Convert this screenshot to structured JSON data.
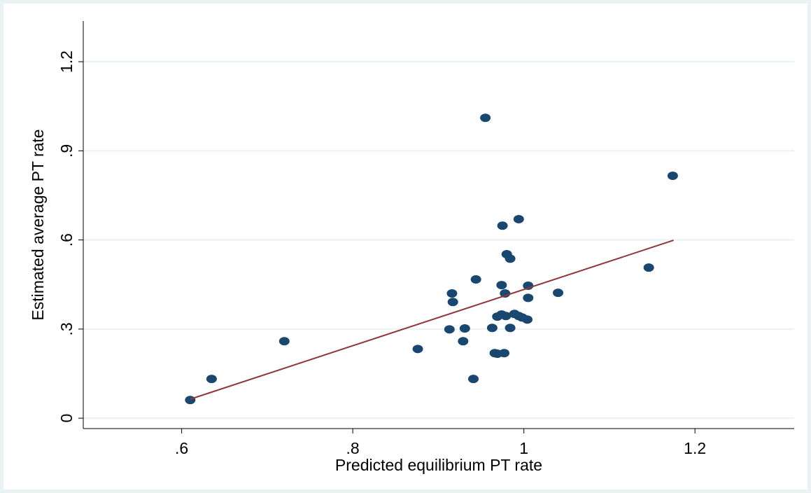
{
  "chart_data": {
    "type": "scatter",
    "x_label": "Predicted equilibrium PT rate",
    "y_label": "Estimated average PT rate",
    "xlim": [
      0.485,
      1.316
    ],
    "ylim": [
      -0.035,
      1.337
    ],
    "xticks": [
      {
        "value": 0.6,
        "label": ".6"
      },
      {
        "value": 0.8,
        "label": ".8"
      },
      1,
      1.2
    ],
    "yticks": [
      0,
      {
        "value": 0.3,
        "label": ".3"
      },
      {
        "value": 0.6,
        "label": ".6"
      },
      {
        "value": 0.9,
        "label": ".9"
      },
      1.2
    ],
    "grid": true,
    "points": {
      "color": "#1a476f",
      "x": [
        0.61,
        0.635,
        0.72,
        0.876,
        0.913,
        0.916,
        0.917,
        0.929,
        0.931,
        0.941,
        0.944,
        0.955,
        0.963,
        0.966,
        0.969,
        0.969,
        0.974,
        0.974,
        0.975,
        0.977,
        0.978,
        0.979,
        0.98,
        0.984,
        0.984,
        0.989,
        0.994,
        0.994,
        0.998,
        1.004,
        1.005,
        1.005,
        1.04,
        1.146,
        1.174
      ],
      "values": [
        0.061,
        0.132,
        0.259,
        0.233,
        0.299,
        0.42,
        0.391,
        0.259,
        0.302,
        0.132,
        0.467,
        1.011,
        0.304,
        0.219,
        0.217,
        0.342,
        0.349,
        0.448,
        0.648,
        0.219,
        0.42,
        0.344,
        0.552,
        0.537,
        0.304,
        0.351,
        0.67,
        0.344,
        0.339,
        0.332,
        0.405,
        0.446,
        0.422,
        0.507,
        0.816
      ]
    },
    "fit_line": {
      "color": "#90353b",
      "x": [
        0.61,
        1.175
      ],
      "values": [
        0.064,
        0.599
      ]
    }
  }
}
